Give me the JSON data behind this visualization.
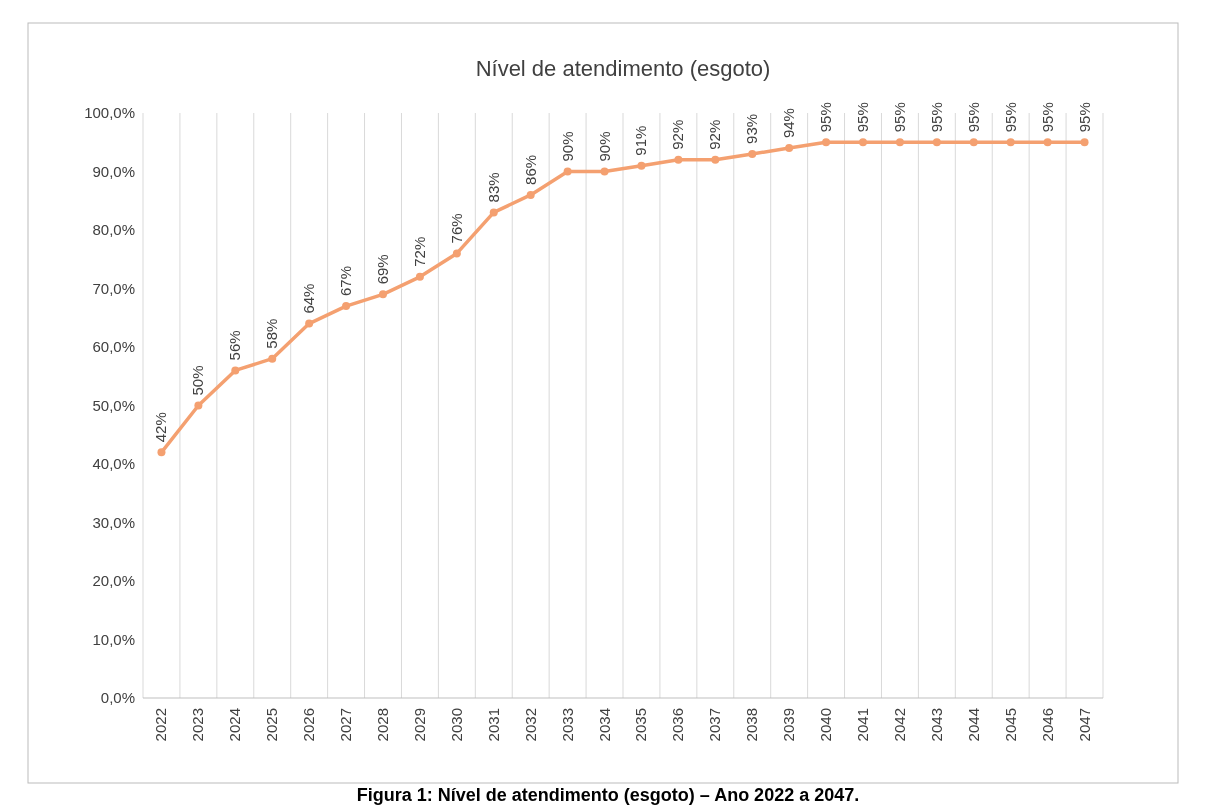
{
  "chart_data": {
    "type": "line",
    "title": "Nível de atendimento (esgoto)",
    "categories": [
      "2022",
      "2023",
      "2024",
      "2025",
      "2026",
      "2027",
      "2028",
      "2029",
      "2030",
      "2031",
      "2032",
      "2033",
      "2034",
      "2035",
      "2036",
      "2037",
      "2038",
      "2039",
      "2040",
      "2041",
      "2042",
      "2043",
      "2044",
      "2045",
      "2046",
      "2047"
    ],
    "series": [
      {
        "color": "#f4a070",
        "values": [
          42,
          50,
          56,
          58,
          64,
          67,
          69,
          72,
          76,
          83,
          86,
          90,
          90,
          91,
          92,
          92,
          93,
          94,
          95,
          95,
          95,
          95,
          95,
          95,
          95,
          95
        ],
        "value_labels": [
          "42%",
          "50%",
          "56%",
          "58%",
          "64%",
          "67%",
          "69%",
          "72%",
          "76%",
          "83%",
          "86%",
          "90%",
          "90%",
          "91%",
          "92%",
          "92%",
          "93%",
          "94%",
          "95%",
          "95%",
          "95%",
          "95%",
          "95%",
          "95%",
          "95%",
          "95%"
        ]
      }
    ],
    "ylim": [
      0,
      100
    ],
    "yticks": [
      {
        "value": 0,
        "label": "0,0%"
      },
      {
        "value": 10,
        "label": "10,0%"
      },
      {
        "value": 20,
        "label": "20,0%"
      },
      {
        "value": 30,
        "label": "30,0%"
      },
      {
        "value": 40,
        "label": "40,0%"
      },
      {
        "value": 50,
        "label": "50,0%"
      },
      {
        "value": 60,
        "label": "60,0%"
      },
      {
        "value": 70,
        "label": "70,0%"
      },
      {
        "value": 80,
        "label": "80,0%"
      },
      {
        "value": 90,
        "label": "90,0%"
      },
      {
        "value": 100,
        "label": "100,0%"
      }
    ],
    "grid": "x",
    "marker": "circle",
    "annotations": [
      "Figura 1: Nível de atendimento (esgoto) – Ano 2022 a 2047."
    ]
  }
}
